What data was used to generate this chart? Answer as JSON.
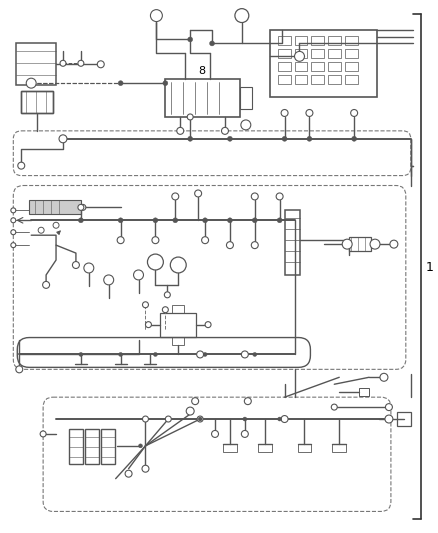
{
  "bg_color": "#ffffff",
  "line_color": "#555555",
  "dashed_color": "#777777",
  "bracket_color": "#333333",
  "label_1": "1",
  "label_8": "8",
  "fig_width": 4.39,
  "fig_height": 5.33,
  "dpi": 100,
  "lw_main": 1.4,
  "lw_wire": 1.0,
  "lw_thin": 0.6
}
